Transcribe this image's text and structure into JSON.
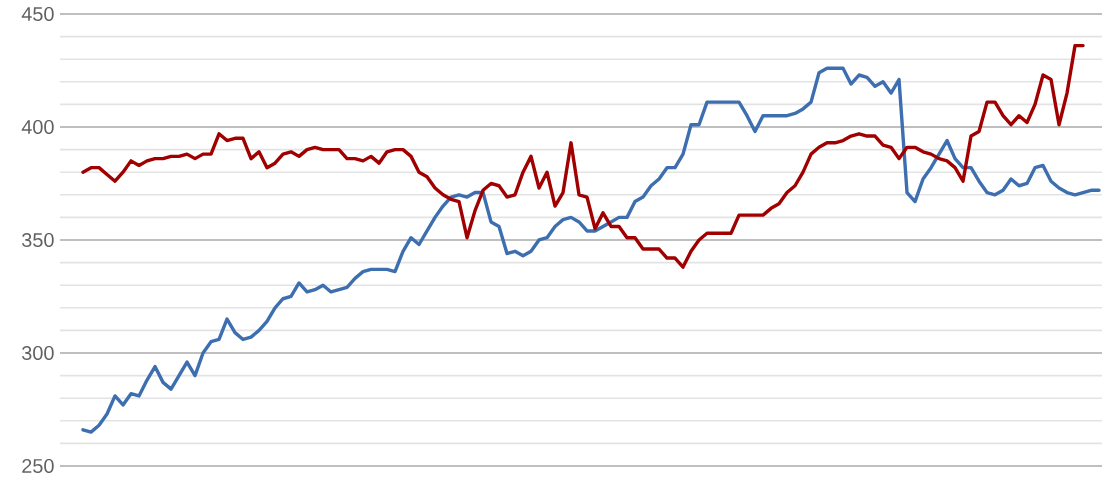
{
  "chart_data": {
    "type": "line",
    "categories": [
      null,
      null,
      null,
      null,
      null,
      null,
      null,
      null,
      null,
      null,
      null,
      null,
      null,
      null,
      null,
      null,
      null,
      null,
      null,
      null,
      null,
      null,
      null,
      null,
      null,
      null,
      null,
      null,
      null,
      null,
      null,
      null,
      null,
      null,
      null,
      null,
      null,
      null,
      null,
      null,
      null,
      null,
      null,
      null,
      null,
      null,
      null,
      null,
      null,
      null,
      null,
      null,
      null,
      null,
      null,
      null,
      null,
      null,
      null,
      null,
      null,
      null,
      null,
      null,
      null,
      null,
      null,
      null,
      null,
      null,
      null,
      null,
      null,
      null,
      null,
      null,
      null,
      null,
      null,
      null,
      null,
      null,
      null,
      null,
      null,
      null,
      null,
      null,
      null,
      null,
      null,
      null,
      null,
      null,
      null,
      null,
      null,
      null,
      null,
      null,
      null,
      null,
      null,
      null,
      null,
      null,
      null,
      null,
      null,
      null,
      null,
      null,
      null,
      null,
      null,
      null,
      null,
      null,
      null,
      null,
      null,
      null,
      null,
      null,
      null,
      null,
      null,
      null
    ],
    "series": [
      {
        "color": "#3d6fb0",
        "values": [
          266,
          265,
          268,
          273,
          281,
          277,
          282,
          281,
          288,
          294,
          287,
          284,
          290,
          296,
          290,
          300,
          305,
          306,
          315,
          309,
          306,
          307,
          310,
          314,
          320,
          324,
          325,
          331,
          327,
          328,
          330,
          327,
          328,
          329,
          333,
          336,
          337,
          337,
          337,
          336,
          345,
          351,
          348,
          354,
          360,
          365,
          369,
          370,
          369,
          371,
          371,
          358,
          356,
          344,
          345,
          343,
          345,
          350,
          351,
          356,
          359,
          360,
          358,
          354,
          354,
          356,
          358,
          360,
          360,
          367,
          369,
          374,
          377,
          382,
          382,
          388,
          401,
          401,
          411,
          411,
          411,
          411,
          411,
          405,
          398,
          405,
          405,
          405,
          405,
          406,
          408,
          411,
          424,
          426,
          426,
          426,
          419,
          423,
          422,
          418,
          420,
          415,
          421,
          371,
          367,
          377,
          382,
          388,
          394,
          386,
          382,
          382,
          376,
          371,
          370,
          372,
          377,
          374,
          375,
          382,
          383,
          376,
          373,
          371,
          370,
          371,
          372,
          372
        ]
      },
      {
        "color": "#a00000",
        "values": [
          380,
          382,
          382,
          379,
          376,
          380,
          385,
          383,
          385,
          386,
          386,
          387,
          387,
          388,
          386,
          388,
          388,
          397,
          394,
          395,
          395,
          386,
          389,
          382,
          384,
          388,
          389,
          387,
          390,
          391,
          390,
          390,
          390,
          386,
          386,
          385,
          387,
          384,
          389,
          390,
          390,
          387,
          380,
          378,
          373,
          370,
          368,
          367,
          351,
          363,
          372,
          375,
          374,
          369,
          370,
          380,
          387,
          373,
          380,
          365,
          371,
          393,
          370,
          369,
          355,
          362,
          356,
          356,
          351,
          351,
          346,
          346,
          346,
          342,
          342,
          338,
          345,
          350,
          353,
          353,
          353,
          353,
          361,
          361,
          361,
          361,
          364,
          366,
          371,
          374,
          380,
          388,
          391,
          393,
          393,
          394,
          396,
          397,
          396,
          396,
          392,
          391,
          386,
          391,
          391,
          389,
          388,
          386,
          385,
          382,
          376,
          396,
          398,
          411,
          411,
          405,
          401,
          405,
          402,
          410,
          423,
          421,
          401,
          415,
          436,
          436,
          null,
          null
        ]
      }
    ],
    "ylim": [
      250,
      450
    ],
    "yticks": [
      250,
      {
        "value": 260,
        "label": null
      },
      {
        "value": 270,
        "label": null
      },
      {
        "value": 280,
        "label": null
      },
      {
        "value": 290,
        "label": null
      },
      300,
      {
        "value": 310,
        "label": null
      },
      {
        "value": 320,
        "label": null
      },
      {
        "value": 330,
        "label": null
      },
      {
        "value": 340,
        "label": null
      },
      350,
      {
        "value": 360,
        "label": null
      },
      {
        "value": 370,
        "label": null
      },
      {
        "value": 380,
        "label": null
      },
      {
        "value": 390,
        "label": null
      },
      400,
      {
        "value": 410,
        "label": null
      },
      {
        "value": 420,
        "label": null
      },
      {
        "value": 430,
        "label": null
      },
      {
        "value": 440,
        "label": null
      },
      450
    ],
    "grid": "y"
  }
}
